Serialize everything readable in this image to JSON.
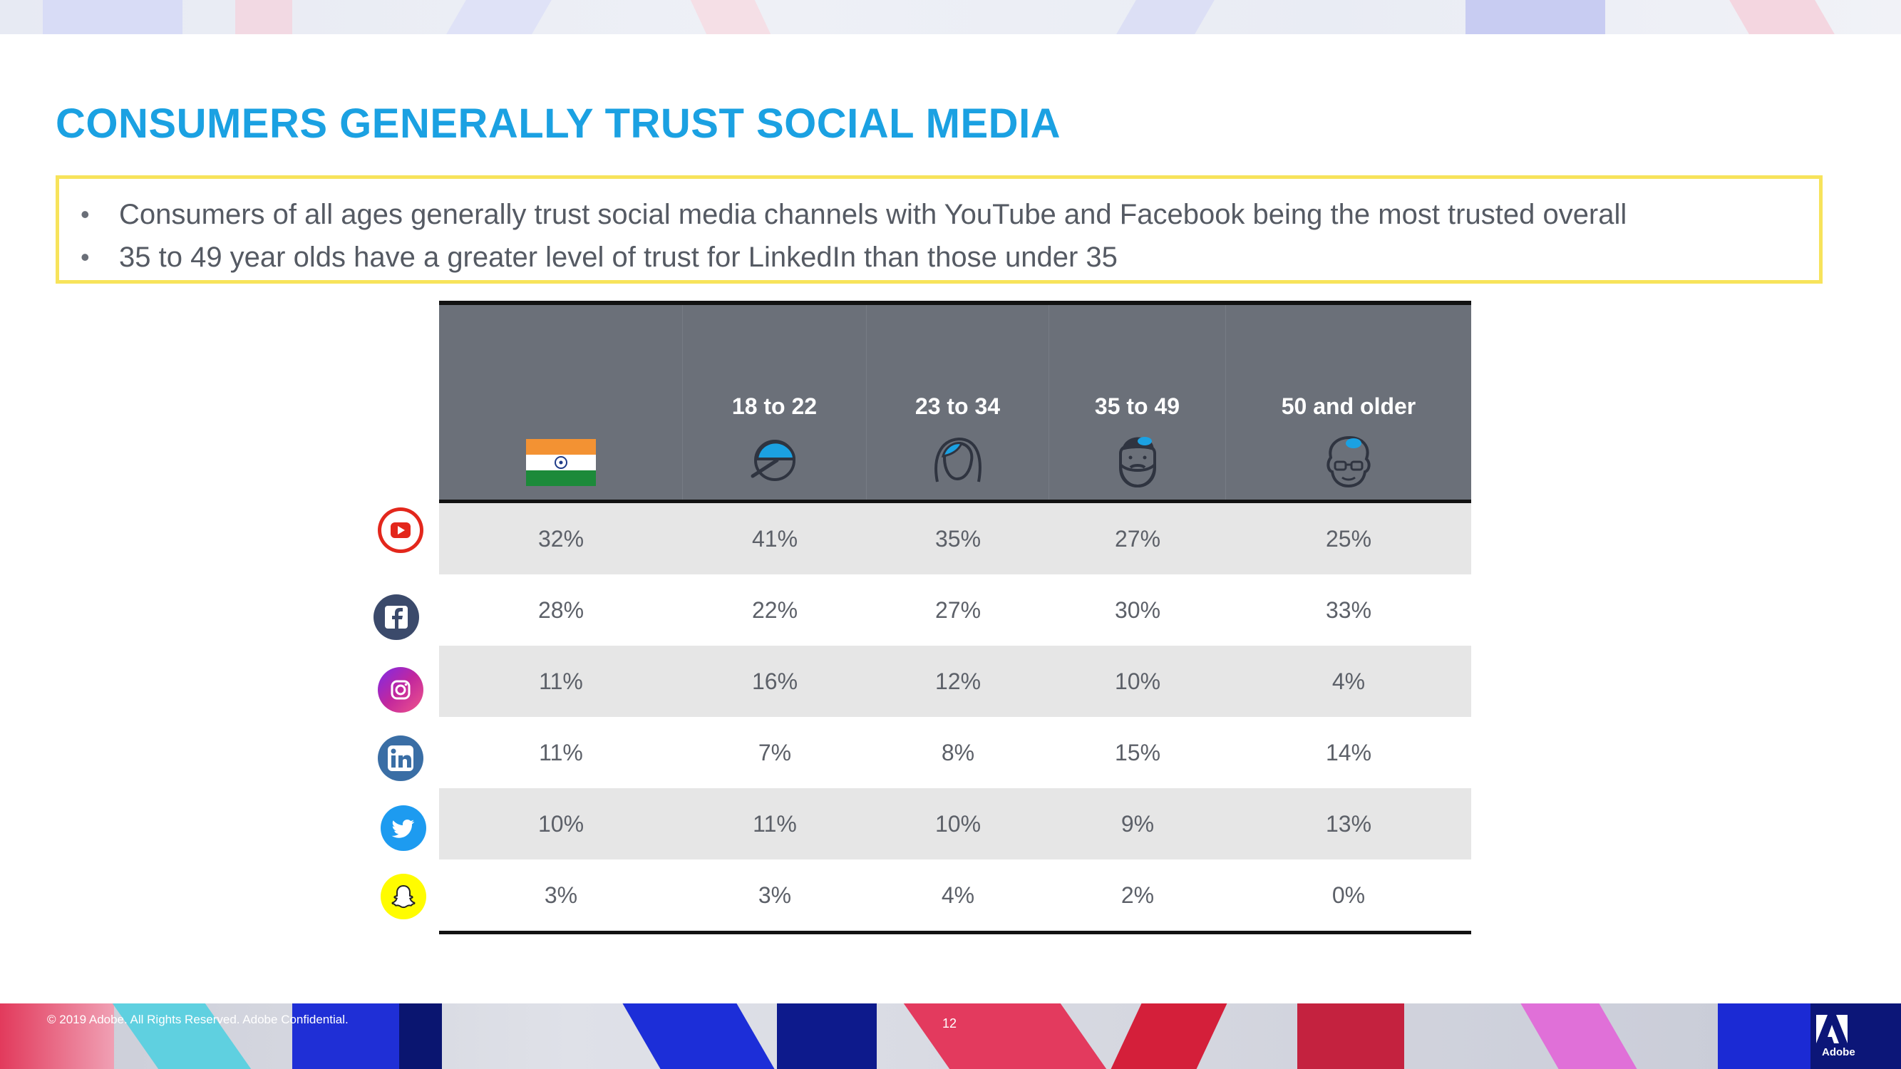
{
  "slide": {
    "title": "CONSUMERS GENERALLY TRUST SOCIAL MEDIA",
    "bullets": [
      "Consumers of all ages generally trust social media channels with YouTube and Facebook being the most trusted overall",
      "35 to 49 year olds have a greater level of trust for LinkedIn than those under 35"
    ],
    "footer": "© 2019 Adobe.  All Rights Reserved.  Adobe Confidential.",
    "page_number": "12",
    "brand": "Adobe"
  },
  "colors": {
    "title": "#1ba1e2",
    "callout_border": "#f7e35b",
    "header_bg": "#6b7079",
    "row_shade": "#e6e6e6"
  },
  "table": {
    "columns": [
      {
        "label": "",
        "icon": "india-flag-icon"
      },
      {
        "label": "18 to 22",
        "icon": "cap-head-icon"
      },
      {
        "label": "23 to 34",
        "icon": "long-hair-head-icon"
      },
      {
        "label": "35 to 49",
        "icon": "bearded-head-icon"
      },
      {
        "label": "50 and older",
        "icon": "older-person-glasses-icon"
      }
    ],
    "rows": [
      {
        "platform": "YouTube",
        "icon": "youtube-icon",
        "values": [
          "32%",
          "41%",
          "35%",
          "27%",
          "25%"
        ]
      },
      {
        "platform": "Facebook",
        "icon": "facebook-icon",
        "values": [
          "28%",
          "22%",
          "27%",
          "30%",
          "33%"
        ]
      },
      {
        "platform": "Instagram",
        "icon": "instagram-icon",
        "values": [
          "11%",
          "16%",
          "12%",
          "10%",
          "4%"
        ]
      },
      {
        "platform": "LinkedIn",
        "icon": "linkedin-icon",
        "values": [
          "11%",
          "7%",
          "8%",
          "15%",
          "14%"
        ]
      },
      {
        "platform": "Twitter",
        "icon": "twitter-icon",
        "values": [
          "10%",
          "11%",
          "10%",
          "9%",
          "13%"
        ]
      },
      {
        "platform": "Snapchat",
        "icon": "snapchat-icon",
        "values": [
          "3%",
          "3%",
          "4%",
          "2%",
          "0%"
        ]
      }
    ]
  }
}
